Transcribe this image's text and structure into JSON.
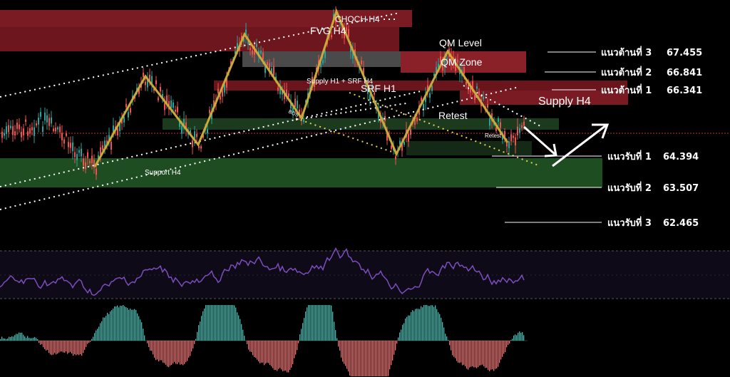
{
  "colors": {
    "background": "#000000",
    "supply_zone": "#7a1a22",
    "demand_zone": "#1e4d22",
    "pattern_line": "#c9a93a",
    "channel_dots": "#ffffff",
    "candle_up": "#26a69a",
    "candle_down": "#ef5350",
    "rsi_line": "#7c4dbd",
    "histogram_up": "#4db6ac",
    "histogram_down": "#e57373"
  },
  "annotations": {
    "choch": "CHOCH H4",
    "fvg": "FVG H4",
    "qm_level": "QM Level",
    "qm_zone": "QM Zone",
    "supply_srf": "Supply H1 + SRF H4",
    "srf_h1": "SRF H1",
    "retest": "Retest",
    "retest_small": "Retest",
    "supply_h4": "Supply H4",
    "support_h4": "Support H4",
    "bos": "BOS"
  },
  "chart_data": {
    "type": "line",
    "title": "",
    "resistance_levels": [
      {
        "label": "แนวต้านที่ 3",
        "value": "67.455"
      },
      {
        "label": "แนวต้านที่ 2",
        "value": "66.841"
      },
      {
        "label": "แนวต้านที่ 1",
        "value": "66.341"
      }
    ],
    "support_levels": [
      {
        "label": "แนวรับที่ 1",
        "value": "64.394"
      },
      {
        "label": "แนวรับที่ 2",
        "value": "63.507"
      },
      {
        "label": "แนวรับที่ 3",
        "value": "62.465"
      }
    ],
    "zigzag_pattern_prices": [
      63.7,
      65.9,
      64.7,
      66.9,
      65.4,
      67.0,
      63.9,
      66.6,
      64.8
    ],
    "projection": [
      "down to support 1",
      "up toward 65.5"
    ],
    "indicators": [
      "RSI",
      "Histogram"
    ]
  }
}
